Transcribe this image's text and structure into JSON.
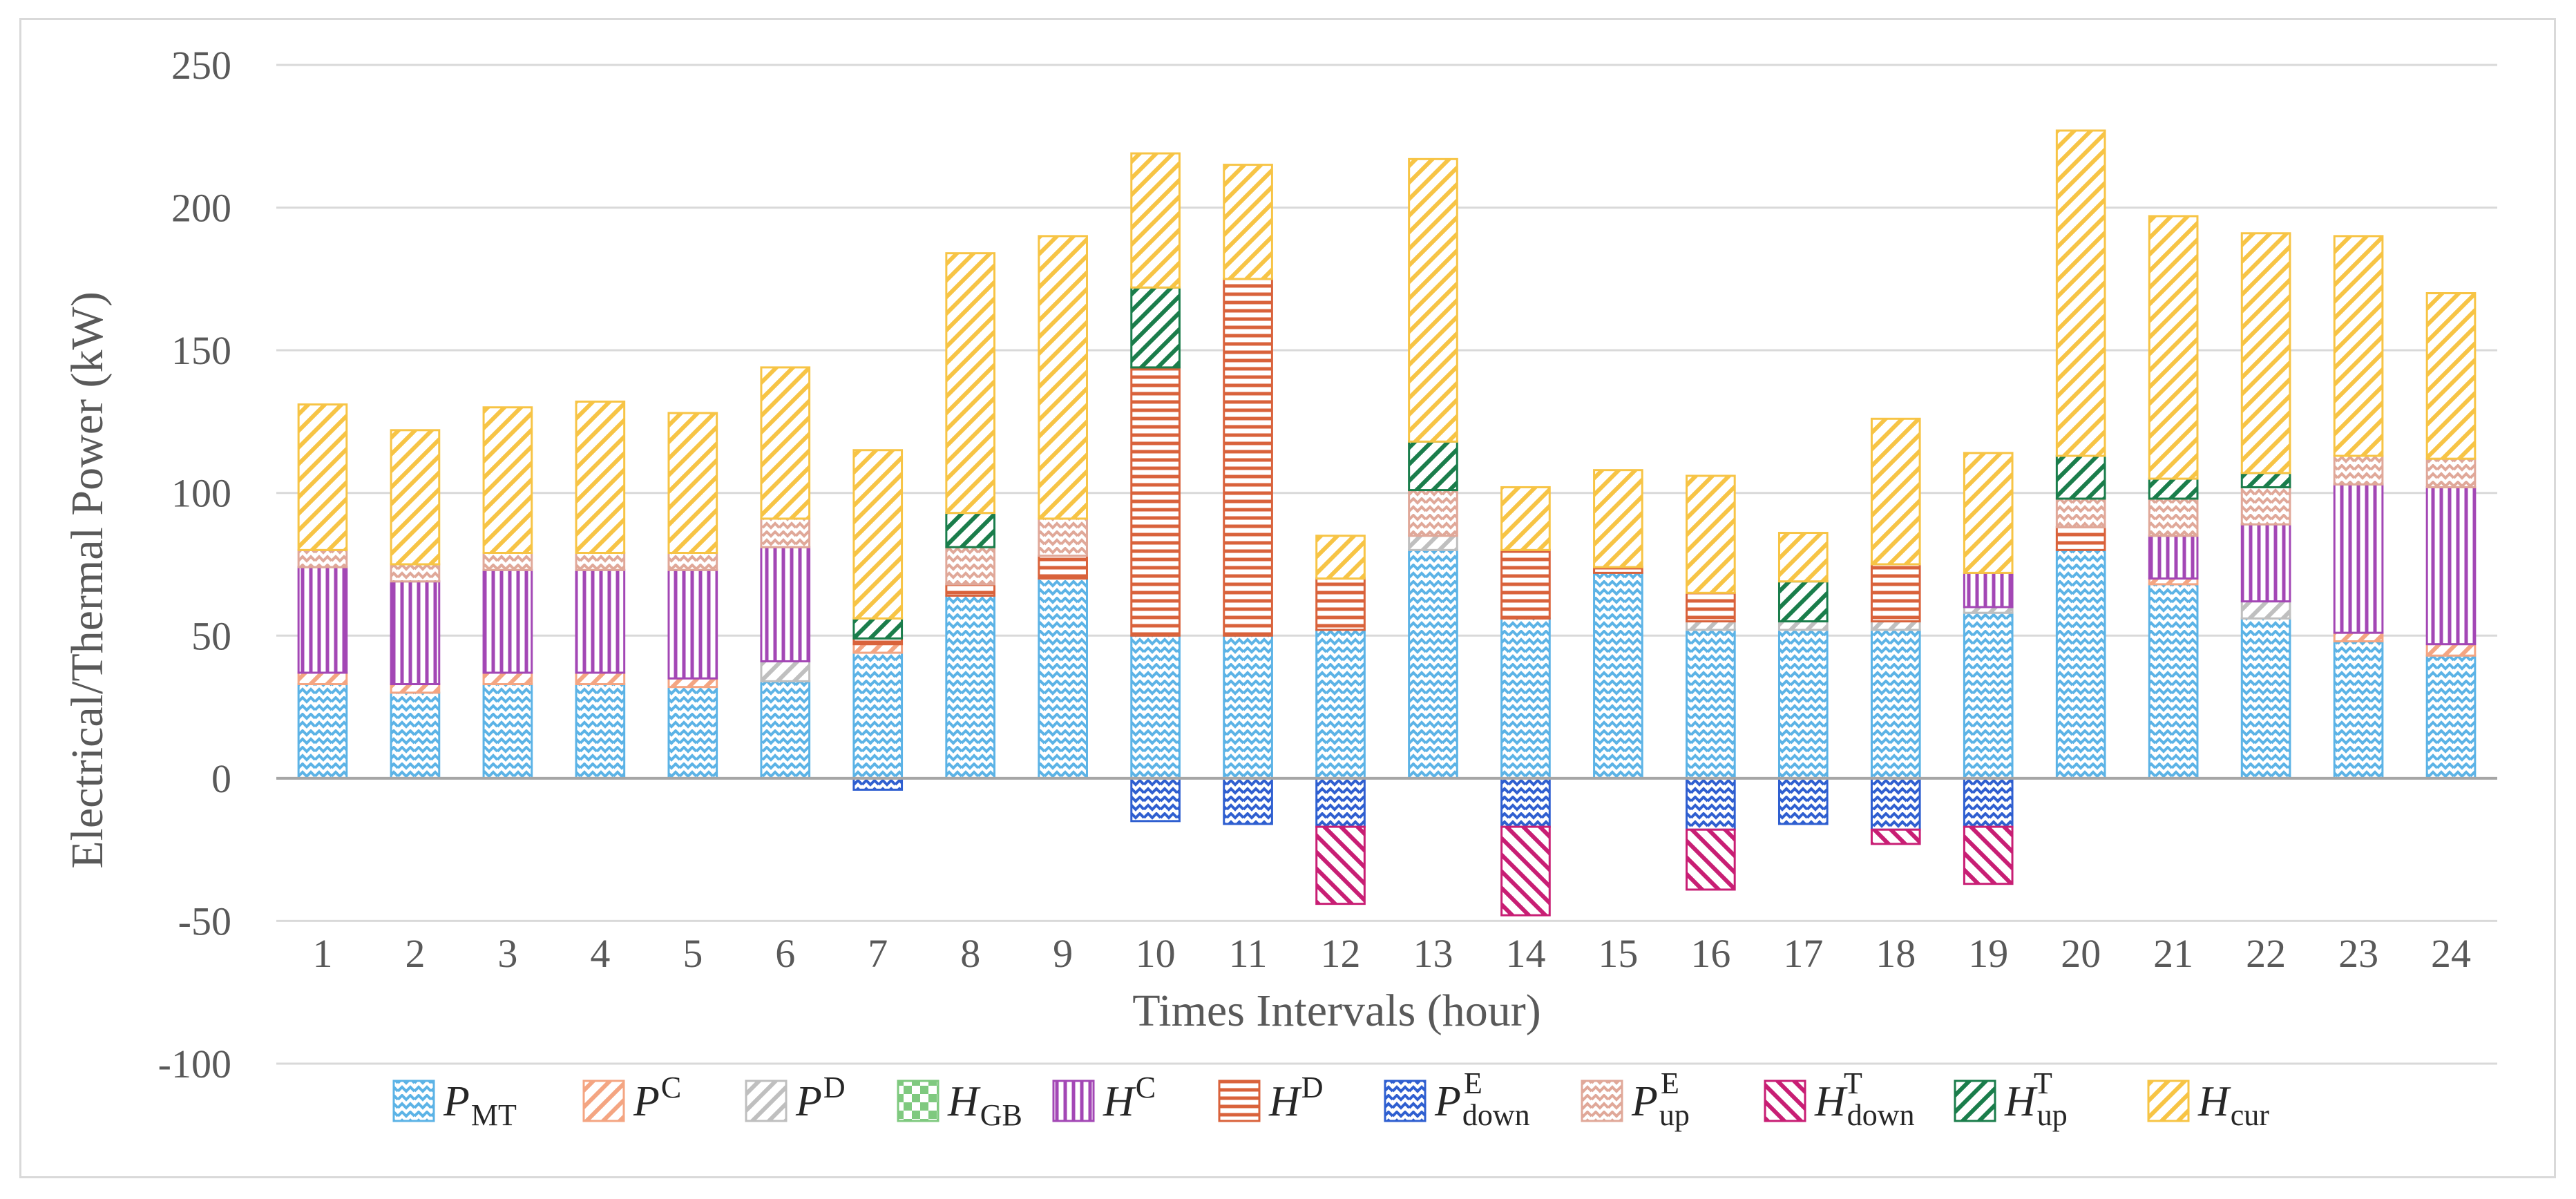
{
  "chart_data": {
    "type": "bar",
    "stacked": true,
    "title": "",
    "xlabel": "Times Intervals (hour)",
    "ylabel": "Electrical/Thermal  Power (kW)",
    "ylim": [
      -100,
      250
    ],
    "yticks": [
      250,
      200,
      150,
      100,
      50,
      0,
      -50,
      -100
    ],
    "grid": true,
    "legend_position": "bottom",
    "categories": [
      "1",
      "2",
      "3",
      "4",
      "5",
      "6",
      "7",
      "8",
      "9",
      "10",
      "11",
      "12",
      "13",
      "14",
      "15",
      "16",
      "17",
      "18",
      "19",
      "20",
      "21",
      "22",
      "23",
      "24"
    ],
    "series": [
      {
        "key": "pmt",
        "name": "P",
        "sub": "MT",
        "sup": "",
        "color": "#5cb3e6",
        "pattern": "zigzag",
        "values": [
          33,
          30,
          33,
          33,
          32,
          34,
          44,
          64,
          70,
          50,
          50,
          52,
          80,
          56,
          72,
          52,
          52,
          52,
          58,
          80,
          68,
          56,
          48,
          43
        ]
      },
      {
        "key": "pc",
        "name": "P",
        "sub": "",
        "sup": "C",
        "color": "#f4a582",
        "pattern": "diag",
        "values": [
          4,
          3,
          4,
          4,
          3,
          0,
          3,
          0,
          0,
          0,
          0,
          0,
          0,
          0,
          0,
          0,
          0,
          0,
          0,
          0,
          2,
          0,
          3,
          4
        ]
      },
      {
        "key": "pd",
        "name": "P",
        "sub": "",
        "sup": "D",
        "color": "#bfbfbf",
        "pattern": "diag",
        "values": [
          0,
          0,
          0,
          0,
          0,
          7,
          0,
          0,
          0,
          0,
          0,
          0,
          5,
          0,
          0,
          3,
          3,
          3,
          2,
          0,
          0,
          6,
          0,
          0
        ]
      },
      {
        "key": "hgb",
        "name": "H",
        "sub": "GB",
        "sup": "",
        "color": "#7fc97f",
        "pattern": "check",
        "values": [
          0,
          0,
          0,
          0,
          0,
          0,
          0,
          0,
          0,
          0,
          0,
          0,
          0,
          0,
          0,
          0,
          0,
          0,
          0,
          0,
          0,
          0,
          0,
          0
        ]
      },
      {
        "key": "hc",
        "name": "H",
        "sub": "",
        "sup": "C",
        "color": "#a347b5",
        "pattern": "vert",
        "values": [
          37,
          36,
          36,
          36,
          38,
          40,
          0,
          0,
          0,
          0,
          0,
          0,
          0,
          0,
          0,
          0,
          0,
          0,
          12,
          0,
          15,
          27,
          52,
          55
        ]
      },
      {
        "key": "hd",
        "name": "H",
        "sub": "",
        "sup": "D",
        "color": "#d9623b",
        "pattern": "horiz",
        "values": [
          0,
          0,
          0,
          0,
          0,
          0,
          2,
          4,
          8,
          94,
          125,
          18,
          0,
          24,
          2,
          10,
          0,
          20,
          0,
          8,
          0,
          0,
          0,
          0
        ]
      },
      {
        "key": "pdown",
        "name": "P",
        "sub": "down",
        "sup": "E",
        "color": "#2f5fd0",
        "pattern": "zigzag",
        "values": [
          0,
          0,
          0,
          0,
          0,
          0,
          -4,
          0,
          0,
          -15,
          -16,
          -17,
          0,
          -17,
          0,
          -18,
          -16,
          -18,
          -17,
          0,
          0,
          0,
          0,
          0
        ]
      },
      {
        "key": "pup",
        "name": "P",
        "sub": "up",
        "sup": "E",
        "color": "#e0a899",
        "pattern": "zigzag",
        "values": [
          6,
          6,
          6,
          6,
          6,
          10,
          0,
          13,
          13,
          0,
          0,
          0,
          16,
          0,
          0,
          0,
          0,
          0,
          0,
          10,
          13,
          13,
          10,
          10
        ]
      },
      {
        "key": "hdown",
        "name": "H",
        "sub": "down",
        "sup": "T",
        "color": "#c81e74",
        "pattern": "diag2",
        "values": [
          0,
          0,
          0,
          0,
          0,
          0,
          0,
          0,
          0,
          0,
          0,
          -27,
          0,
          -31,
          0,
          -21,
          0,
          -5,
          -20,
          0,
          0,
          0,
          0,
          0
        ]
      },
      {
        "key": "hup",
        "name": "H",
        "sub": "up",
        "sup": "T",
        "color": "#1a7d4b",
        "pattern": "diag",
        "values": [
          0,
          0,
          0,
          0,
          0,
          0,
          7,
          12,
          0,
          28,
          0,
          0,
          17,
          0,
          0,
          0,
          14,
          0,
          0,
          15,
          7,
          5,
          0,
          0
        ]
      },
      {
        "key": "hcur",
        "name": "H",
        "sub": "cur",
        "sup": "",
        "color": "#f7c445",
        "pattern": "diag",
        "values": [
          51,
          47,
          51,
          53,
          49,
          53,
          59,
          91,
          99,
          47,
          40,
          15,
          99,
          22,
          34,
          41,
          17,
          51,
          42,
          114,
          92,
          84,
          77,
          58
        ]
      }
    ]
  }
}
